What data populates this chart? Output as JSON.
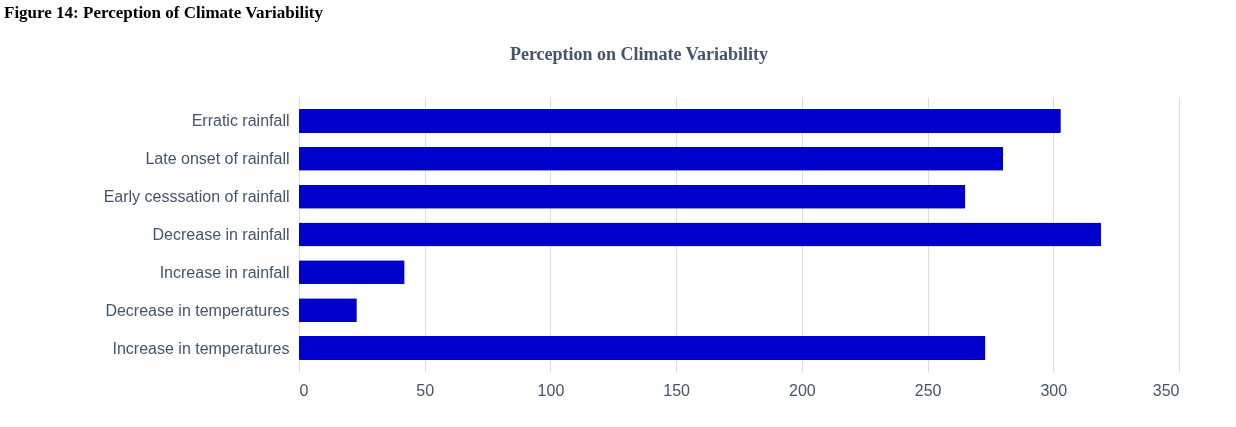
{
  "chart_data": {
    "type": "bar",
    "orientation": "horizontal",
    "title": "Perception on Climate Variability",
    "annotations": [
      "Figure 14: Perception of Climate Variability"
    ],
    "categories": [
      "Erratic rainfall",
      "Late onset of rainfall",
      "Early cesssation of rainfall",
      "Decrease in rainfall",
      "Increase in rainfall",
      "Decrease in temperatures",
      "Increase in temperatures"
    ],
    "values": [
      303,
      280,
      265,
      319,
      42,
      23,
      273
    ],
    "color": "#0000cc",
    "xlim": [
      0,
      350
    ],
    "xticks": [
      0,
      50,
      100,
      150,
      200,
      250,
      300,
      350
    ],
    "grid": "x"
  }
}
